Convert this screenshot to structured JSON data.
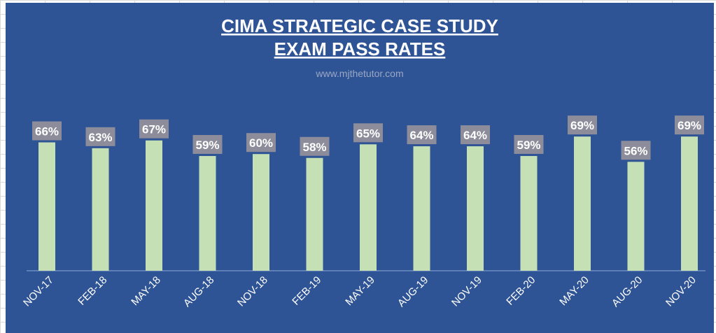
{
  "chart_data": {
    "type": "bar",
    "title_lines": [
      "CIMA STRATEGIC CASE STUDY",
      "EXAM PASS RATES"
    ],
    "subtitle": "www.mjthetutor.com",
    "categories": [
      "NOV-17",
      "FEB-18",
      "MAY-18",
      "AUG-18",
      "NOV-18",
      "FEB-19",
      "MAY-19",
      "AUG-19",
      "NOV-19",
      "FEB-20",
      "MAY-20",
      "AUG-20",
      "NOV-20"
    ],
    "values": [
      66,
      63,
      67,
      59,
      60,
      58,
      65,
      64,
      64,
      59,
      69,
      56,
      69
    ],
    "data_labels": [
      "66%",
      "63%",
      "67%",
      "59%",
      "60%",
      "58%",
      "65%",
      "64%",
      "64%",
      "59%",
      "69%",
      "56%",
      "69%"
    ],
    "ylim": [
      0,
      100
    ],
    "grid": false,
    "legend": "none",
    "colors": {
      "background": "#2f5496",
      "bar": "#c5e0b4",
      "label_box": "#8c8c9a",
      "text": "#ffffff",
      "subtitle": "#9aa7c4"
    }
  }
}
